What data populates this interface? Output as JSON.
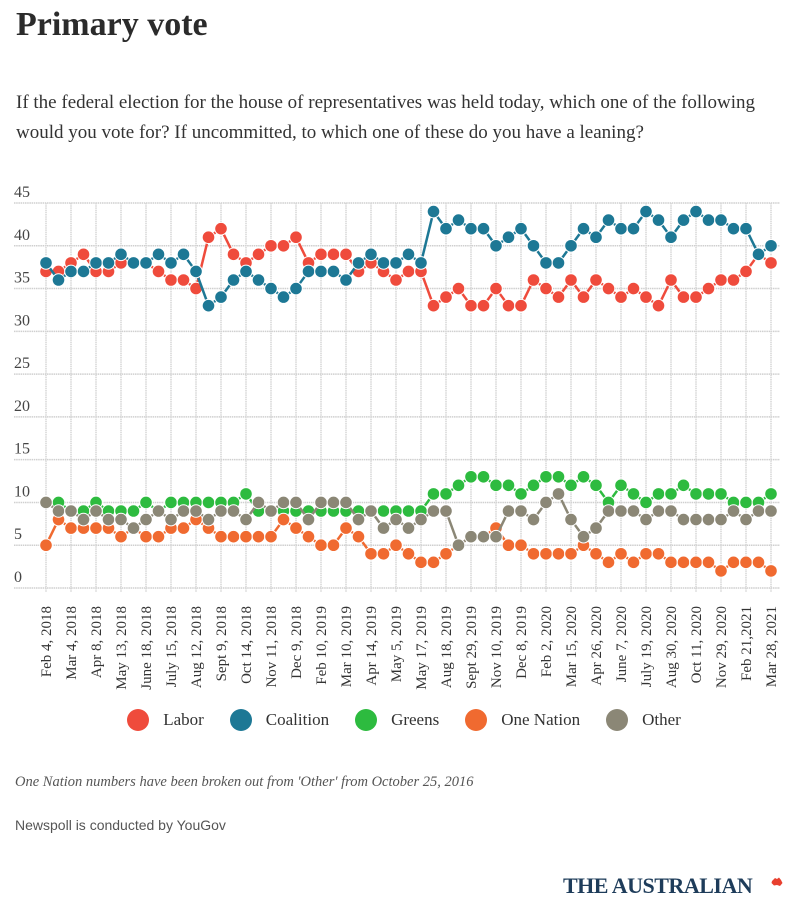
{
  "title": "Primary vote",
  "subtitle": "If the federal election for the house of representatives was held today, which one of the following would you vote for? If uncommitted, to which one of these do you have a leaning?",
  "note": "One Nation numbers have been broken out from 'Other' from October 25, 2016",
  "source": "Newspoll is conducted by YouGov",
  "brand": "THE AUSTRALIAN",
  "chart_data": {
    "type": "line",
    "title": "Primary vote",
    "xlabel": "",
    "ylabel": "",
    "ylim": [
      0,
      45
    ],
    "yticks": [
      0,
      5,
      10,
      15,
      20,
      25,
      30,
      35,
      40,
      45
    ],
    "grid": true,
    "legend_position": "bottom",
    "tick_labels": [
      "Feb 4, 2018",
      "Mar 4, 2018",
      "Apr 8, 2018",
      "May 13, 2018",
      "June 18, 2018",
      "July 15, 2018",
      "Aug 12, 2018",
      "Sept 9, 2018",
      "Oct 14, 2018",
      "Nov 11, 2018",
      "Dec 9, 2018",
      "Feb 10, 2019",
      "Mar 10, 2019",
      "Apr 14, 2019",
      "May 5, 2019",
      "May 17, 2019",
      "Aug 18, 2019",
      "Sept 29, 2019",
      "Nov 10, 2019",
      "Dec 8, 2019",
      "Feb 2, 2020",
      "Mar 15, 2020",
      "Apr 26, 2020",
      "June 7, 2020",
      "July 19, 2020",
      "Aug 30, 2020",
      "Oct 11, 2020",
      "Nov 29, 2020",
      "Feb 21,2021",
      "Mar 28, 2021"
    ],
    "series": [
      {
        "name": "Labor",
        "color": "#ef4b3c",
        "values": [
          37,
          37,
          38,
          39,
          37,
          37,
          38,
          38,
          38,
          37,
          36,
          36,
          35,
          41,
          42,
          39,
          38,
          39,
          40,
          40,
          41,
          38,
          39,
          39,
          39,
          37,
          38,
          37,
          36,
          37,
          37,
          33,
          34,
          35,
          33,
          33,
          35,
          33,
          33,
          36,
          35,
          34,
          36,
          34,
          36,
          35,
          34,
          35,
          34,
          33,
          36,
          34,
          34,
          35,
          36,
          36,
          37,
          39,
          38
        ]
      },
      {
        "name": "Coalition",
        "color": "#1d7895",
        "values": [
          38,
          36,
          37,
          37,
          38,
          38,
          39,
          38,
          38,
          39,
          38,
          39,
          37,
          33,
          34,
          36,
          37,
          36,
          35,
          34,
          35,
          37,
          37,
          37,
          36,
          38,
          39,
          38,
          38,
          39,
          38,
          44,
          42,
          43,
          42,
          42,
          40,
          41,
          42,
          40,
          38,
          38,
          40,
          42,
          41,
          43,
          42,
          42,
          44,
          43,
          41,
          43,
          44,
          43,
          43,
          42,
          42,
          39,
          40
        ]
      },
      {
        "name": "Greens",
        "color": "#2dbb3f",
        "values": [
          10,
          10,
          9,
          9,
          10,
          9,
          9,
          9,
          10,
          9,
          10,
          10,
          10,
          10,
          10,
          10,
          11,
          9,
          9,
          9,
          9,
          9,
          9,
          9,
          9,
          9,
          9,
          9,
          9,
          9,
          9,
          11,
          11,
          12,
          13,
          13,
          12,
          12,
          11,
          12,
          13,
          13,
          12,
          13,
          12,
          10,
          12,
          11,
          10,
          11,
          11,
          12,
          11,
          11,
          11,
          10,
          10,
          10,
          11
        ]
      },
      {
        "name": "One Nation",
        "color": "#f06a30",
        "values": [
          5,
          8,
          7,
          7,
          7,
          7,
          6,
          7,
          6,
          6,
          7,
          7,
          8,
          7,
          6,
          6,
          6,
          6,
          6,
          8,
          7,
          6,
          5,
          5,
          7,
          6,
          4,
          4,
          5,
          4,
          3,
          3,
          4,
          5,
          6,
          6,
          7,
          5,
          5,
          4,
          4,
          4,
          4,
          5,
          4,
          3,
          4,
          3,
          4,
          4,
          3,
          3,
          3,
          3,
          2,
          3,
          3,
          3,
          2
        ]
      },
      {
        "name": "Other",
        "color": "#8b8776",
        "values": [
          10,
          9,
          9,
          8,
          9,
          8,
          8,
          7,
          8,
          9,
          8,
          9,
          9,
          8,
          9,
          9,
          8,
          10,
          9,
          10,
          10,
          8,
          10,
          10,
          10,
          8,
          9,
          7,
          8,
          7,
          8,
          9,
          9,
          5,
          6,
          6,
          6,
          9,
          9,
          8,
          10,
          11,
          8,
          6,
          7,
          9,
          9,
          9,
          8,
          9,
          9,
          8,
          8,
          8,
          8,
          9,
          8,
          9,
          9
        ]
      }
    ]
  },
  "legend": [
    {
      "label": "Labor",
      "color": "#ef4b3c"
    },
    {
      "label": "Coalition",
      "color": "#1d7895"
    },
    {
      "label": "Greens",
      "color": "#2dbb3f"
    },
    {
      "label": "One Nation",
      "color": "#f06a30"
    },
    {
      "label": "Other",
      "color": "#8b8776"
    }
  ]
}
